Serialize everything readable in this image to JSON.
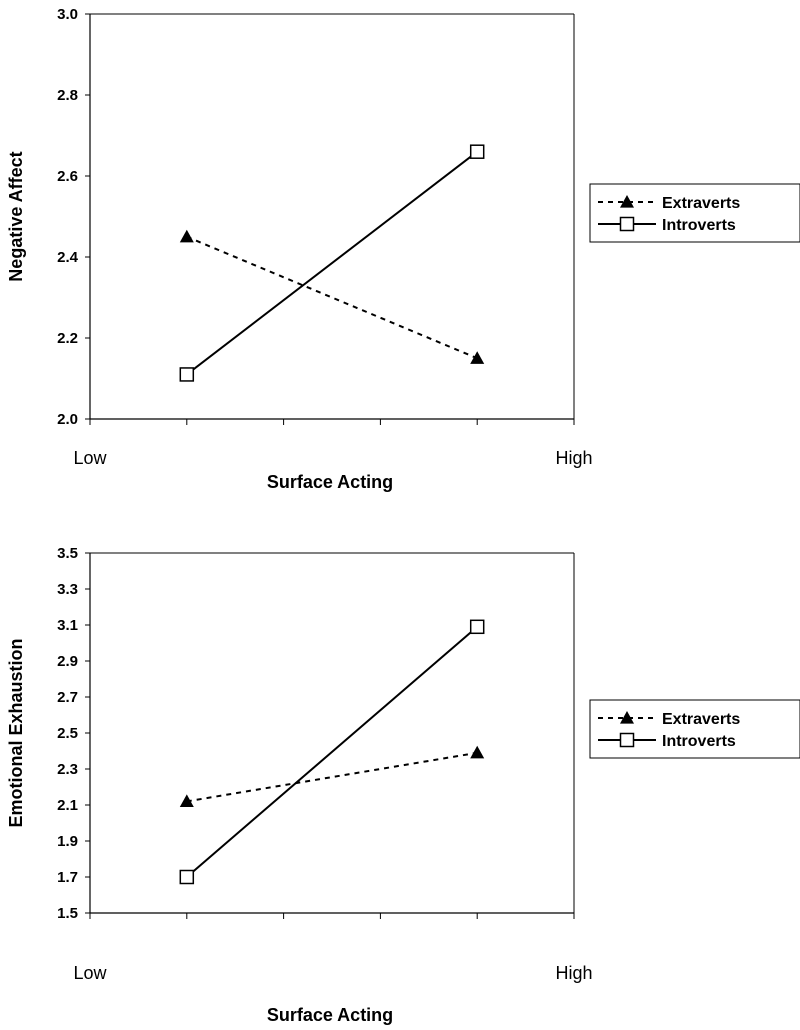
{
  "chart_data": [
    {
      "type": "line",
      "categories": [
        "Low",
        "High"
      ],
      "x": [
        1,
        2
      ],
      "series": [
        {
          "name": "Extraverts",
          "values": [
            2.45,
            2.15
          ],
          "style": "dashed",
          "marker": "filled-triangle",
          "color": "#000000"
        },
        {
          "name": "Introverts",
          "values": [
            2.11,
            2.66
          ],
          "style": "solid",
          "marker": "open-square",
          "color": "#000000"
        }
      ],
      "xlabel": "Surface Acting",
      "ylabel": "Negative Affect",
      "ylim": [
        2.0,
        3.0
      ],
      "yticks": [
        "2.0",
        "2.2",
        "2.4",
        "2.6",
        "2.8",
        "3.0"
      ],
      "grid": false,
      "legend": "right"
    },
    {
      "type": "line",
      "categories": [
        "Low",
        "High"
      ],
      "x": [
        1,
        2
      ],
      "series": [
        {
          "name": "Extraverts",
          "values": [
            2.12,
            2.39
          ],
          "style": "dashed",
          "marker": "filled-triangle",
          "color": "#000000"
        },
        {
          "name": "Introverts",
          "values": [
            1.7,
            3.09
          ],
          "style": "solid",
          "marker": "open-square",
          "color": "#000000"
        }
      ],
      "xlabel": "Surface Acting",
      "ylabel": "Emotional Exhaustion",
      "ylim": [
        1.5,
        3.5
      ],
      "yticks": [
        "1.5",
        "1.7",
        "1.9",
        "2.1",
        "2.3",
        "2.5",
        "2.7",
        "2.9",
        "3.1",
        "3.3",
        "3.5"
      ],
      "grid": false,
      "legend": "right"
    }
  ]
}
